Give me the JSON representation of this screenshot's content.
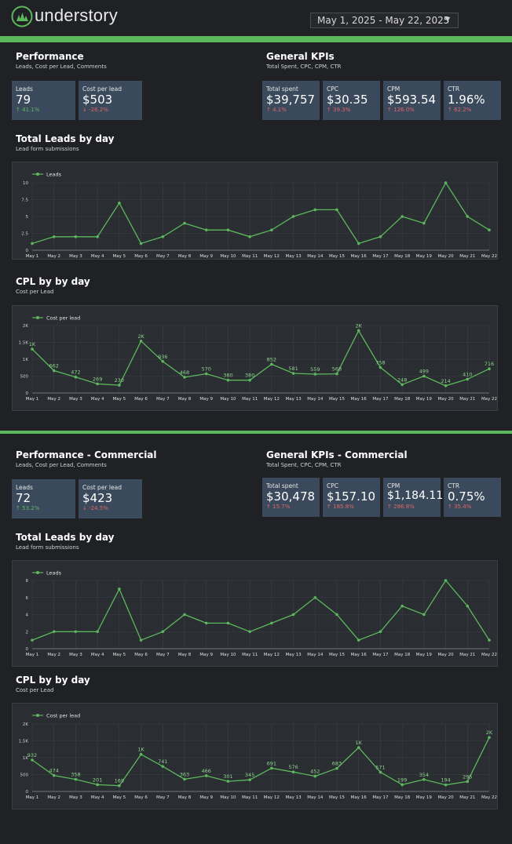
{
  "header": {
    "brand": "understory",
    "date_range": "May 1, 2025 - May 22, 2025",
    "accent": "#5cb85c"
  },
  "sections": [
    {
      "performance": {
        "title": "Performance",
        "subtitle": "Leads, Cost per Lead, Comments",
        "cards": [
          {
            "label": "Leads",
            "value": "79",
            "delta": "41.1%",
            "dir": "up"
          },
          {
            "label": "Cost per lead",
            "value": "$503",
            "delta": "-26.2%",
            "dir": "down"
          }
        ]
      },
      "kpis": {
        "title": "General KPIs",
        "subtitle": "Total Spent, CPC, CPM, CTR",
        "cards": [
          {
            "label": "Total spent",
            "value": "$39,757",
            "delta": "4.1%",
            "dir": "up"
          },
          {
            "label": "CPC",
            "value": "$30.35",
            "delta": "39.3%",
            "dir": "up"
          },
          {
            "label": "CPM",
            "value": "$593.54",
            "delta": "126.0%",
            "dir": "up"
          },
          {
            "label": "CTR",
            "value": "1.96%",
            "delta": "62.2%",
            "dir": "up"
          }
        ]
      },
      "leads_title": "Total Leads by day",
      "leads_subtitle": "Lead form submissions",
      "cpl_title": "CPL by by day",
      "cpl_subtitle": "Cost per Lead"
    },
    {
      "performance": {
        "title": "Performance - Commercial",
        "subtitle": "Leads, Cost per Lead, Comments",
        "cards": [
          {
            "label": "Leads",
            "value": "72",
            "delta": "53.2%",
            "dir": "up"
          },
          {
            "label": "Cost per lead",
            "value": "$423",
            "delta": "-24.5%",
            "dir": "down"
          }
        ]
      },
      "kpis": {
        "title": "General KPIs - Commercial",
        "subtitle": "Total Spent, CPC, CPM, CTR",
        "cards": [
          {
            "label": "Total spent",
            "value": "$30,478",
            "delta": "15.7%",
            "dir": "up"
          },
          {
            "label": "CPC",
            "value": "$157.10",
            "delta": "185.8%",
            "dir": "up"
          },
          {
            "label": "CPM",
            "value": "$1,184.11",
            "delta": "286.8%",
            "dir": "up"
          },
          {
            "label": "CTR",
            "value": "0.75%",
            "delta": "35.4%",
            "dir": "up"
          }
        ]
      },
      "leads_title": "Total Leads by day",
      "leads_subtitle": "Lead form submissions",
      "cpl_title": "CPL by by day",
      "cpl_subtitle": "Cost per Lead"
    }
  ],
  "chart_data": [
    {
      "type": "line",
      "title": "Total Leads by day",
      "legend": "Leads",
      "categories": [
        "May 1",
        "May 2",
        "May 3",
        "May 4",
        "May 5",
        "May 6",
        "May 7",
        "May 8",
        "May 9",
        "May 10",
        "May 11",
        "May 12",
        "May 13",
        "May 14",
        "May 15",
        "May 16",
        "May 17",
        "May 18",
        "May 19",
        "May 20",
        "May 21",
        "May 22"
      ],
      "values": [
        1,
        2,
        2,
        2,
        7,
        1,
        2,
        4,
        3,
        3,
        2,
        3,
        5,
        6,
        6,
        1,
        2,
        5,
        4,
        10,
        5,
        3
      ],
      "yticks": [
        "0",
        "2.5",
        "5",
        "7.5",
        "10"
      ],
      "ylim": [
        0,
        10
      ],
      "data_labels": []
    },
    {
      "type": "line",
      "title": "CPL by by day",
      "legend": "Cost per lead",
      "categories": [
        "May 1",
        "May 2",
        "May 3",
        "May 4",
        "May 5",
        "May 6",
        "May 7",
        "May 8",
        "May 9",
        "May 10",
        "May 11",
        "May 12",
        "May 13",
        "May 14",
        "May 15",
        "May 16",
        "May 17",
        "May 18",
        "May 19",
        "May 20",
        "May 21",
        "May 22"
      ],
      "values": [
        1300,
        662,
        472,
        269,
        230,
        1540,
        936,
        468,
        570,
        380,
        380,
        852,
        581,
        559,
        568,
        1850,
        758,
        248,
        499,
        214,
        410,
        716
      ],
      "yticks": [
        "0",
        "500",
        "1K",
        "1.5K",
        "2K"
      ],
      "ylim": [
        0,
        2000
      ],
      "data_labels": [
        "1K",
        "662",
        "472",
        "269",
        "230",
        "2K",
        "936",
        "468",
        "570",
        "380",
        "380",
        "852",
        "581",
        "559",
        "568",
        "2K",
        "758",
        "248",
        "499",
        "214",
        "410",
        "716"
      ]
    },
    {
      "type": "line",
      "title": "Total Leads by day",
      "legend": "Leads",
      "categories": [
        "May 1",
        "May 2",
        "May 3",
        "May 4",
        "May 5",
        "May 6",
        "May 7",
        "May 8",
        "May 9",
        "May 10",
        "May 11",
        "May 12",
        "May 13",
        "May 14",
        "May 15",
        "May 16",
        "May 17",
        "May 18",
        "May 19",
        "May 20",
        "May 21",
        "May 22"
      ],
      "values": [
        1,
        2,
        2,
        2,
        7,
        1,
        2,
        4,
        3,
        3,
        2,
        3,
        4,
        6,
        4,
        1,
        2,
        5,
        4,
        8,
        5,
        1
      ],
      "yticks": [
        "0",
        "2",
        "4",
        "6",
        "8"
      ],
      "ylim": [
        0,
        8
      ],
      "data_labels": []
    },
    {
      "type": "line",
      "title": "CPL by by day",
      "legend": "Cost per lead",
      "categories": [
        "May 1",
        "May 2",
        "May 3",
        "May 4",
        "May 5",
        "May 6",
        "May 7",
        "May 8",
        "May 9",
        "May 10",
        "May 11",
        "May 12",
        "May 13",
        "May 14",
        "May 15",
        "May 16",
        "May 17",
        "May 18",
        "May 19",
        "May 20",
        "May 21",
        "May 22"
      ],
      "values": [
        932,
        474,
        358,
        201,
        169,
        1100,
        741,
        363,
        466,
        301,
        345,
        691,
        576,
        452,
        683,
        1300,
        571,
        199,
        354,
        194,
        295,
        1600
      ],
      "yticks": [
        "0",
        "500",
        "1K",
        "1.5K",
        "2K"
      ],
      "ylim": [
        0,
        2000
      ],
      "data_labels": [
        "932",
        "474",
        "358",
        "201",
        "169",
        "1K",
        "741",
        "363",
        "466",
        "301",
        "345",
        "691",
        "576",
        "452",
        "683",
        "1K",
        "571",
        "199",
        "354",
        "194",
        "295",
        "2K"
      ]
    }
  ]
}
